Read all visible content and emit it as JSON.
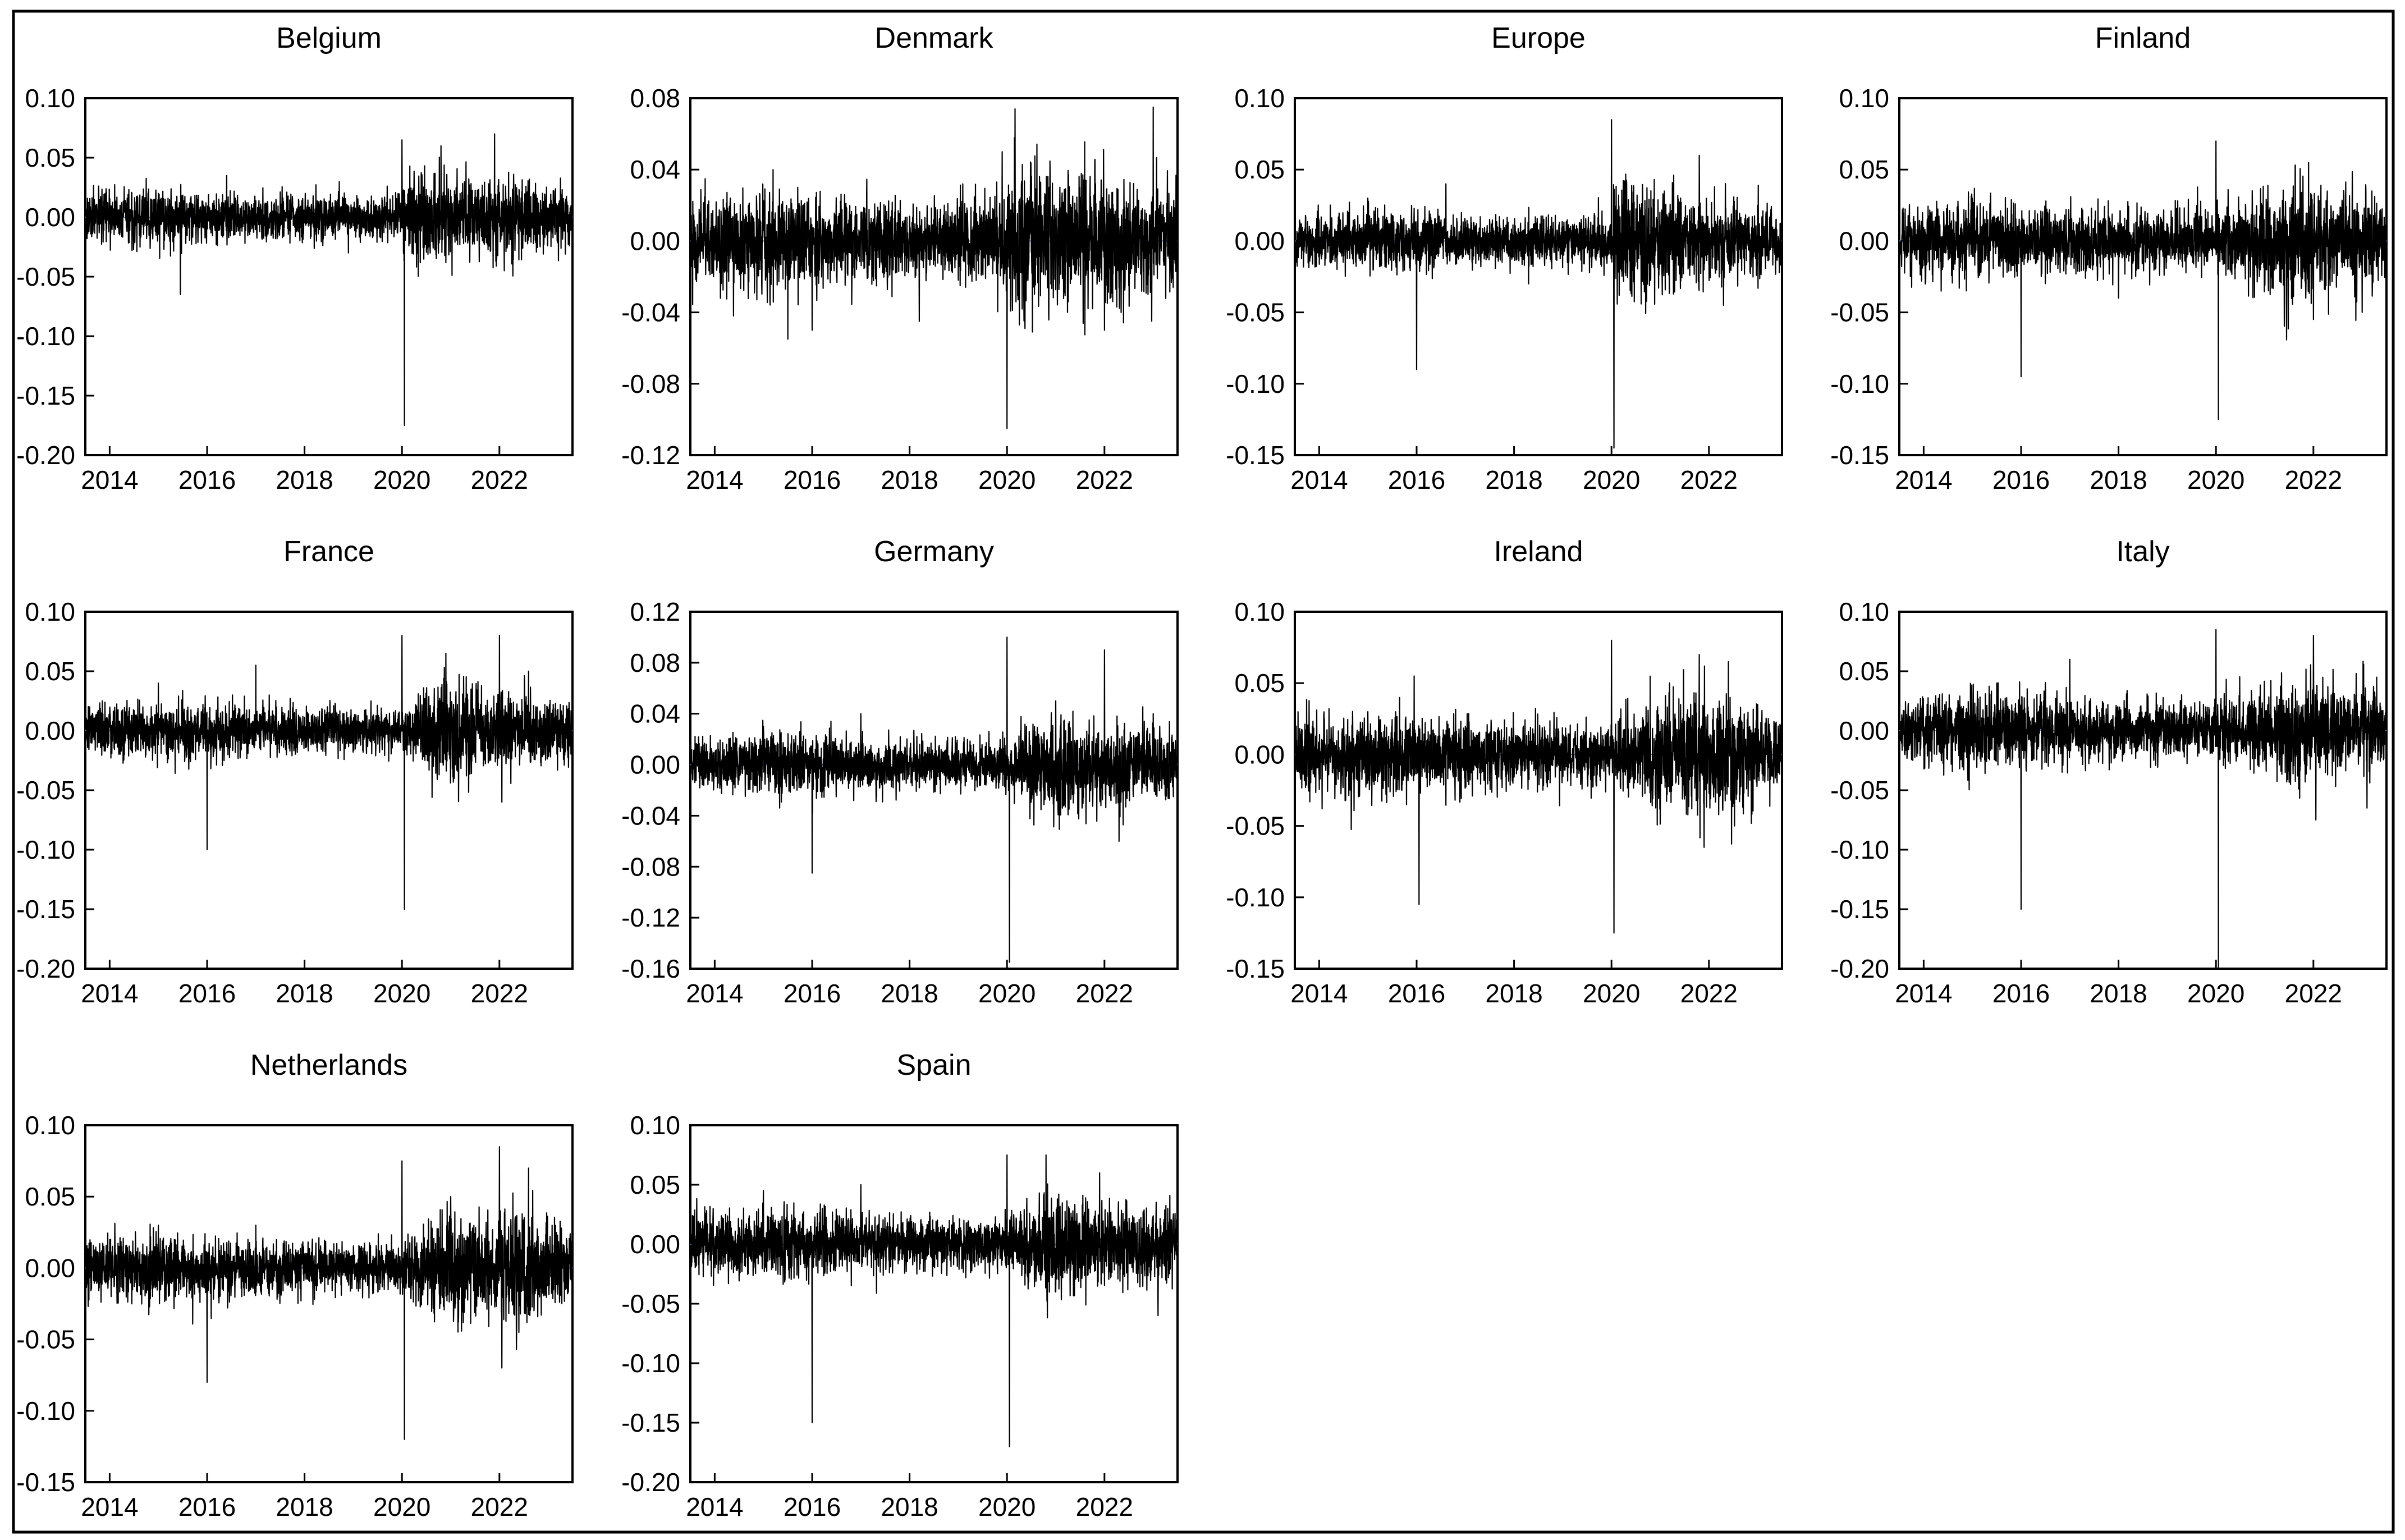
{
  "figure": {
    "panel_titles": [
      "Belgium",
      "Denmark",
      "Europe",
      "Finland",
      "France",
      "Germany",
      "Ireland",
      "Italy",
      "Netherlands",
      "Spain"
    ],
    "x_tick_labels": [
      "2014",
      "2016",
      "2018",
      "2020",
      "2022"
    ]
  },
  "colors": {
    "series": "#000000",
    "zero_line": "#5b7fbf",
    "frame": "#000000"
  },
  "chart_data": [
    {
      "type": "line",
      "title": "Belgium",
      "xlim": [
        2013.5,
        2023.5
      ],
      "ylim": [
        -0.2,
        0.1
      ],
      "x_ticks": [
        2014,
        2016,
        2018,
        2020,
        2022
      ],
      "y_ticks": [
        0.1,
        0.05,
        0.0,
        -0.05,
        -0.1,
        -0.15,
        -0.2
      ],
      "y_tick_labels": [
        "0.10",
        "0.05",
        "0.00",
        "-0.05",
        "-0.10",
        "-0.15",
        "-0.20"
      ],
      "series": [
        {
          "values": [
            0.0,
            0.02,
            -0.065,
            0.035,
            -0.03,
            0.065,
            -0.175,
            0.06,
            0.07,
            -0.045,
            0.03
          ]
        }
      ],
      "extremes_x": [
        2014.0,
        2015.0,
        2015.45,
        2016.4,
        2018.9,
        2020.0,
        2020.05,
        2020.8,
        2021.9,
        2022.1,
        2023.5
      ],
      "volatility": [
        0.01,
        0.012,
        0.01,
        0.009,
        0.008,
        0.009,
        0.022,
        0.016,
        0.014,
        0.016,
        0.013
      ]
    },
    {
      "type": "line",
      "title": "Denmark",
      "xlim": [
        2013.5,
        2023.5
      ],
      "ylim": [
        -0.12,
        0.08
      ],
      "x_ticks": [
        2014,
        2016,
        2018,
        2020,
        2022
      ],
      "y_ticks": [
        0.08,
        0.04,
        0.0,
        -0.04,
        -0.08,
        -0.12
      ],
      "y_tick_labels": [
        "0.08",
        "0.04",
        "0.00",
        "-0.04",
        "-0.08",
        "-0.12"
      ],
      "series": [
        {
          "values": [
            0.0,
            0.04,
            -0.055,
            -0.05,
            -0.045,
            0.05,
            -0.105,
            0.045,
            -0.05,
            0.075,
            0.035
          ]
        }
      ],
      "extremes_x": [
        2014.0,
        2015.2,
        2015.5,
        2016.0,
        2018.2,
        2019.9,
        2020.0,
        2021.8,
        2022.0,
        2023.0,
        2023.5
      ],
      "volatility": [
        0.012,
        0.014,
        0.014,
        0.012,
        0.01,
        0.012,
        0.022,
        0.018,
        0.018,
        0.016,
        0.014
      ]
    },
    {
      "type": "line",
      "title": "Europe",
      "xlim": [
        2013.5,
        2023.5
      ],
      "ylim": [
        -0.15,
        0.1
      ],
      "x_ticks": [
        2014,
        2016,
        2018,
        2020,
        2022
      ],
      "y_ticks": [
        0.1,
        0.05,
        0.0,
        -0.05,
        -0.1,
        -0.15
      ],
      "y_tick_labels": [
        "0.10",
        "0.05",
        "0.00",
        "-0.05",
        "-0.10",
        "-0.15"
      ],
      "series": [
        {
          "values": [
            0.0,
            0.03,
            -0.09,
            0.04,
            -0.03,
            0.085,
            -0.145,
            0.06,
            -0.045,
            0.025,
            0.02
          ]
        }
      ],
      "extremes_x": [
        2014.0,
        2015.0,
        2016.0,
        2016.6,
        2018.3,
        2020.0,
        2020.05,
        2021.8,
        2022.3,
        2023.0,
        2023.5
      ],
      "volatility": [
        0.009,
        0.011,
        0.011,
        0.008,
        0.008,
        0.009,
        0.022,
        0.014,
        0.012,
        0.012,
        0.011
      ]
    },
    {
      "type": "line",
      "title": "Finland",
      "xlim": [
        2013.5,
        2023.5
      ],
      "ylim": [
        -0.15,
        0.1
      ],
      "x_ticks": [
        2014,
        2016,
        2018,
        2020,
        2022
      ],
      "y_ticks": [
        0.1,
        0.05,
        0.0,
        -0.05,
        -0.1,
        -0.15
      ],
      "y_tick_labels": [
        "0.10",
        "0.05",
        "0.00",
        "-0.05",
        "-0.10",
        "-0.15"
      ],
      "series": [
        {
          "values": [
            0.0,
            0.03,
            -0.095,
            -0.04,
            0.07,
            -0.125,
            0.055,
            -0.055,
            -0.05,
            0.035,
            0.03
          ]
        }
      ],
      "extremes_x": [
        2014.0,
        2015.0,
        2016.0,
        2018.0,
        2020.0,
        2020.05,
        2021.9,
        2022.0,
        2023.0,
        2023.2,
        2023.5
      ],
      "volatility": [
        0.011,
        0.012,
        0.012,
        0.01,
        0.009,
        0.011,
        0.022,
        0.016,
        0.016,
        0.015,
        0.013
      ]
    },
    {
      "type": "line",
      "title": "France",
      "xlim": [
        2013.5,
        2023.5
      ],
      "ylim": [
        -0.2,
        0.1
      ],
      "x_ticks": [
        2014,
        2016,
        2018,
        2020,
        2022
      ],
      "y_ticks": [
        0.1,
        0.05,
        0.0,
        -0.05,
        -0.1,
        -0.15,
        -0.2
      ],
      "y_tick_labels": [
        "0.10",
        "0.05",
        "0.00",
        "-0.05",
        "-0.10",
        "-0.15",
        "-0.20"
      ],
      "series": [
        {
          "values": [
            0.0,
            0.04,
            -0.1,
            0.055,
            0.08,
            -0.15,
            0.065,
            0.08,
            -0.06,
            0.05,
            0.02
          ]
        }
      ],
      "extremes_x": [
        2014.0,
        2015.0,
        2016.0,
        2017.0,
        2020.0,
        2020.05,
        2020.9,
        2022.0,
        2022.05,
        2022.6,
        2023.5
      ],
      "volatility": [
        0.01,
        0.012,
        0.012,
        0.01,
        0.008,
        0.01,
        0.022,
        0.016,
        0.016,
        0.014,
        0.012
      ]
    },
    {
      "type": "line",
      "title": "Germany",
      "xlim": [
        2013.5,
        2023.5
      ],
      "ylim": [
        -0.16,
        0.12
      ],
      "x_ticks": [
        2014,
        2016,
        2018,
        2020,
        2022
      ],
      "y_ticks": [
        0.12,
        0.08,
        0.04,
        0.0,
        -0.04,
        -0.08,
        -0.12,
        -0.16
      ],
      "y_tick_labels": [
        "0.12",
        "0.08",
        "0.04",
        "0.00",
        "-0.04",
        "-0.08",
        "-0.12",
        "-0.16"
      ],
      "series": [
        {
          "values": [
            0.0,
            0.03,
            -0.085,
            0.04,
            0.1,
            -0.155,
            0.05,
            0.09,
            -0.06,
            0.04,
            0.03
          ]
        }
      ],
      "extremes_x": [
        2014.0,
        2015.0,
        2016.0,
        2017.0,
        2020.0,
        2020.05,
        2021.0,
        2022.0,
        2022.3,
        2023.0,
        2023.5
      ],
      "volatility": [
        0.01,
        0.012,
        0.012,
        0.01,
        0.008,
        0.01,
        0.022,
        0.016,
        0.016,
        0.014,
        0.012
      ]
    },
    {
      "type": "line",
      "title": "Ireland",
      "xlim": [
        2013.5,
        2023.5
      ],
      "ylim": [
        -0.15,
        0.1
      ],
      "x_ticks": [
        2014,
        2016,
        2018,
        2020,
        2022
      ],
      "y_ticks": [
        0.1,
        0.05,
        0.0,
        -0.05,
        -0.1,
        -0.15
      ],
      "y_tick_labels": [
        "0.10",
        "0.05",
        "0.00",
        "-0.05",
        "-0.10",
        "-0.15"
      ],
      "series": [
        {
          "values": [
            0.0,
            0.03,
            0.055,
            -0.105,
            0.08,
            -0.125,
            0.07,
            -0.065,
            0.065,
            0.035,
            0.03
          ]
        }
      ],
      "extremes_x": [
        2014.0,
        2015.0,
        2015.95,
        2016.05,
        2020.0,
        2020.05,
        2021.8,
        2021.9,
        2022.4,
        2023.0,
        2023.5
      ],
      "volatility": [
        0.012,
        0.013,
        0.014,
        0.012,
        0.01,
        0.011,
        0.024,
        0.019,
        0.019,
        0.016,
        0.014
      ]
    },
    {
      "type": "line",
      "title": "Italy",
      "xlim": [
        2013.5,
        2023.5
      ],
      "ylim": [
        -0.2,
        0.1
      ],
      "x_ticks": [
        2014,
        2016,
        2018,
        2020,
        2022
      ],
      "y_ticks": [
        0.1,
        0.05,
        0.0,
        -0.05,
        -0.1,
        -0.15,
        -0.2
      ],
      "y_tick_labels": [
        "0.10",
        "0.05",
        "0.00",
        "-0.05",
        "-0.10",
        "-0.15",
        "-0.20"
      ],
      "series": [
        {
          "values": [
            0.0,
            0.04,
            -0.15,
            0.06,
            0.085,
            -0.2,
            0.08,
            -0.075,
            -0.065,
            0.045,
            0.03
          ]
        }
      ],
      "extremes_x": [
        2014.0,
        2015.5,
        2016.0,
        2017.0,
        2020.0,
        2020.05,
        2022.0,
        2022.05,
        2023.1,
        2023.3,
        2023.5
      ],
      "volatility": [
        0.013,
        0.014,
        0.015,
        0.012,
        0.011,
        0.012,
        0.024,
        0.018,
        0.017,
        0.015,
        0.014
      ]
    },
    {
      "type": "line",
      "title": "Netherlands",
      "xlim": [
        2013.5,
        2023.5
      ],
      "ylim": [
        -0.15,
        0.1
      ],
      "x_ticks": [
        2014,
        2016,
        2018,
        2020,
        2022
      ],
      "y_ticks": [
        0.1,
        0.05,
        0.0,
        -0.05,
        -0.1,
        -0.15
      ],
      "y_tick_labels": [
        "0.10",
        "0.05",
        "0.00",
        "-0.05",
        "-0.10",
        "-0.15"
      ],
      "series": [
        {
          "values": [
            0.0,
            0.03,
            -0.08,
            0.03,
            0.075,
            -0.12,
            0.05,
            0.085,
            -0.07,
            0.07,
            0.03
          ]
        }
      ],
      "extremes_x": [
        2014.0,
        2015.0,
        2016.0,
        2017.0,
        2020.0,
        2020.05,
        2021.0,
        2022.0,
        2022.05,
        2022.6,
        2023.5
      ],
      "volatility": [
        0.01,
        0.011,
        0.011,
        0.009,
        0.008,
        0.01,
        0.02,
        0.016,
        0.022,
        0.02,
        0.014
      ]
    },
    {
      "type": "line",
      "title": "Spain",
      "xlim": [
        2013.5,
        2023.5
      ],
      "ylim": [
        -0.2,
        0.1
      ],
      "x_ticks": [
        2014,
        2016,
        2018,
        2020,
        2022
      ],
      "y_ticks": [
        0.1,
        0.05,
        0.0,
        -0.05,
        -0.1,
        -0.15,
        -0.2
      ],
      "y_tick_labels": [
        "0.10",
        "0.05",
        "0.00",
        "-0.05",
        "-0.10",
        "-0.15",
        "-0.20"
      ],
      "series": [
        {
          "values": [
            0.0,
            0.045,
            -0.15,
            0.05,
            0.075,
            -0.17,
            0.075,
            0.06,
            -0.06,
            0.03,
            0.025
          ]
        }
      ],
      "extremes_x": [
        2014.0,
        2015.0,
        2016.0,
        2017.0,
        2020.0,
        2020.05,
        2020.8,
        2021.9,
        2023.1,
        2023.3,
        2023.5
      ],
      "volatility": [
        0.012,
        0.014,
        0.014,
        0.011,
        0.01,
        0.011,
        0.022,
        0.016,
        0.016,
        0.014,
        0.013
      ]
    }
  ]
}
